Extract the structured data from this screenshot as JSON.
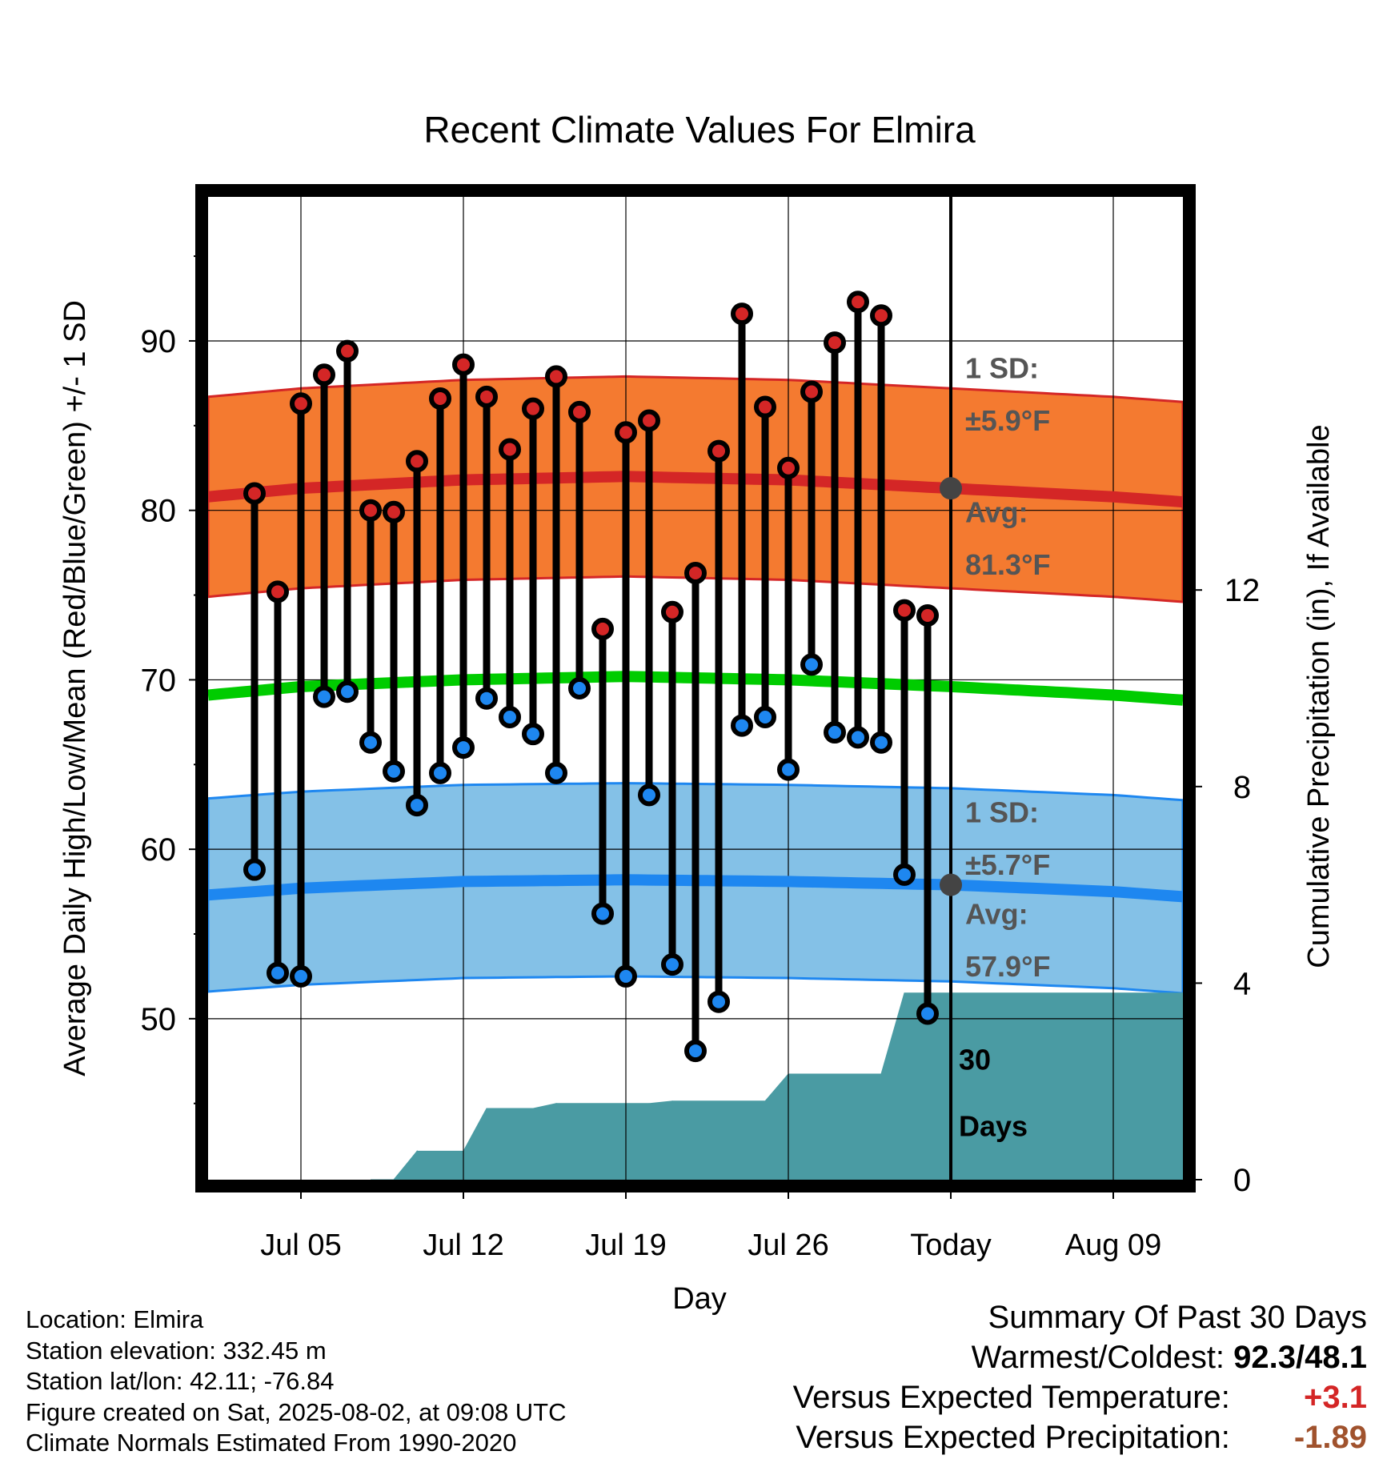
{
  "chart_data": {
    "type": "line",
    "title": "Recent Climate Values For Elmira",
    "xlabel": "Day",
    "ylabel": "Average Daily High/Low/Mean (Red/Blue/Green) +/- 1 SD",
    "y2label": "Cumulative Precipitation (in), If Available",
    "ylim": [
      40.5,
      98.5
    ],
    "y2lim": [
      0,
      20
    ],
    "xlim": [
      "2025-07-01",
      "2025-08-12"
    ],
    "y_ticks": [
      50,
      60,
      70,
      80,
      90
    ],
    "y2_ticks": [
      0,
      4,
      8,
      12
    ],
    "x_ticks": [
      {
        "date": "2025-07-05",
        "label": "Jul 05"
      },
      {
        "date": "2025-07-12",
        "label": "Jul 12"
      },
      {
        "date": "2025-07-19",
        "label": "Jul 19"
      },
      {
        "date": "2025-07-26",
        "label": "Jul 26"
      },
      {
        "date": "2025-08-02",
        "label": "Today"
      },
      {
        "date": "2025-08-09",
        "label": "Aug 09"
      }
    ],
    "today": "2025-08-02",
    "grid": true,
    "daily": [
      {
        "date": "2025-07-03",
        "high": 81.0,
        "low": 58.8
      },
      {
        "date": "2025-07-04",
        "high": 75.2,
        "low": 52.7
      },
      {
        "date": "2025-07-05",
        "high": 86.3,
        "low": 52.5
      },
      {
        "date": "2025-07-06",
        "high": 88.0,
        "low": 69.0
      },
      {
        "date": "2025-07-07",
        "high": 89.4,
        "low": 69.3
      },
      {
        "date": "2025-07-08",
        "high": 80.0,
        "low": 66.3
      },
      {
        "date": "2025-07-09",
        "high": 79.9,
        "low": 64.6
      },
      {
        "date": "2025-07-10",
        "high": 82.9,
        "low": 62.6
      },
      {
        "date": "2025-07-11",
        "high": 86.6,
        "low": 64.5
      },
      {
        "date": "2025-07-12",
        "high": 88.6,
        "low": 66.0
      },
      {
        "date": "2025-07-13",
        "high": 86.7,
        "low": 68.9
      },
      {
        "date": "2025-07-14",
        "high": 83.6,
        "low": 67.8
      },
      {
        "date": "2025-07-15",
        "high": 86.0,
        "low": 66.8
      },
      {
        "date": "2025-07-16",
        "high": 87.9,
        "low": 64.5
      },
      {
        "date": "2025-07-17",
        "high": 85.8,
        "low": 69.5
      },
      {
        "date": "2025-07-18",
        "high": 73.0,
        "low": 56.2
      },
      {
        "date": "2025-07-19",
        "high": 84.6,
        "low": 52.5
      },
      {
        "date": "2025-07-20",
        "high": 85.3,
        "low": 63.2
      },
      {
        "date": "2025-07-21",
        "high": 74.0,
        "low": 53.2
      },
      {
        "date": "2025-07-22",
        "high": 76.3,
        "low": 48.1
      },
      {
        "date": "2025-07-23",
        "high": 83.5,
        "low": 51.0
      },
      {
        "date": "2025-07-24",
        "high": 91.6,
        "low": 67.3
      },
      {
        "date": "2025-07-25",
        "high": 86.1,
        "low": 67.8
      },
      {
        "date": "2025-07-26",
        "high": 82.5,
        "low": 64.7
      },
      {
        "date": "2025-07-27",
        "high": 87.0,
        "low": 70.9
      },
      {
        "date": "2025-07-28",
        "high": 89.9,
        "low": 66.9
      },
      {
        "date": "2025-07-29",
        "high": 92.3,
        "low": 66.6
      },
      {
        "date": "2025-07-30",
        "high": 91.5,
        "low": 66.3
      },
      {
        "date": "2025-07-31",
        "high": 74.1,
        "low": 58.5
      },
      {
        "date": "2025-08-01",
        "high": 73.8,
        "low": 50.3
      }
    ],
    "normals": [
      {
        "date": "2025-07-01",
        "high": 80.8,
        "low": 57.3,
        "mean": 69.1
      },
      {
        "date": "2025-07-05",
        "high": 81.3,
        "low": 57.7,
        "mean": 69.6
      },
      {
        "date": "2025-07-12",
        "high": 81.8,
        "low": 58.1,
        "mean": 70.0
      },
      {
        "date": "2025-07-19",
        "high": 82.0,
        "low": 58.2,
        "mean": 70.2
      },
      {
        "date": "2025-07-26",
        "high": 81.8,
        "low": 58.1,
        "mean": 70.0
      },
      {
        "date": "2025-08-02",
        "high": 81.3,
        "low": 57.9,
        "mean": 69.6
      },
      {
        "date": "2025-08-09",
        "high": 80.8,
        "low": 57.5,
        "mean": 69.1
      },
      {
        "date": "2025-08-12",
        "high": 80.5,
        "low": 57.2,
        "mean": 68.8
      }
    ],
    "sd_high": 5.9,
    "sd_low": 5.7,
    "precip_cumulative": [
      {
        "date": "2025-07-08",
        "value": 0.0
      },
      {
        "date": "2025-07-09",
        "value": 0.0
      },
      {
        "date": "2025-07-10",
        "value": 0.58
      },
      {
        "date": "2025-07-12",
        "value": 0.58
      },
      {
        "date": "2025-07-13",
        "value": 1.45
      },
      {
        "date": "2025-07-15",
        "value": 1.45
      },
      {
        "date": "2025-07-16",
        "value": 1.55
      },
      {
        "date": "2025-07-20",
        "value": 1.55
      },
      {
        "date": "2025-07-21",
        "value": 1.6
      },
      {
        "date": "2025-07-25",
        "value": 1.6
      },
      {
        "date": "2025-07-26",
        "value": 2.15
      },
      {
        "date": "2025-07-30",
        "value": 2.15
      },
      {
        "date": "2025-07-31",
        "value": 3.8
      },
      {
        "date": "2025-08-12",
        "value": 3.8
      }
    ],
    "annotations": {
      "high_sd": {
        "line1": "1 SD:",
        "line2": "±5.9°F"
      },
      "high_avg": {
        "line1": "Avg:",
        "line2": "81.3°F"
      },
      "low_sd": {
        "line1": "1 SD:",
        "line2": "±5.7°F"
      },
      "low_avg": {
        "line1": "Avg:",
        "line2": "57.9°F"
      },
      "precip_days": {
        "line1": "30",
        "line2": "Days"
      }
    },
    "colors": {
      "high_band": "#f47a30",
      "high_line": "#d42626",
      "low_band": "#84c1e7",
      "low_line": "#1e87f0",
      "mean_line": "#00cc00",
      "precip": "#4a9ba3",
      "high_point": "#d42626",
      "low_point": "#1e87f0",
      "today_marker": "#444444",
      "annotation": "#555555"
    }
  },
  "footer": {
    "location": "Location: Elmira",
    "elevation": "Station elevation: 332.45 m",
    "latlon": "Station lat/lon: 42.11; -76.84",
    "created": "Figure created on Sat, 2025-08-02, at 09:08 UTC",
    "normals": "Climate Normals Estimated From 1990-2020"
  },
  "summary": {
    "title": "Summary Of Past 30 Days",
    "warmest_label": "Warmest/Coldest:",
    "warmest_value": "92.3/48.1",
    "temp_label": "Versus Expected Temperature:",
    "temp_value": "+3.1",
    "temp_color": "#d42626",
    "precip_label": "Versus Expected Precipitation:",
    "precip_value": "-1.89",
    "precip_color": "#a0522d"
  }
}
